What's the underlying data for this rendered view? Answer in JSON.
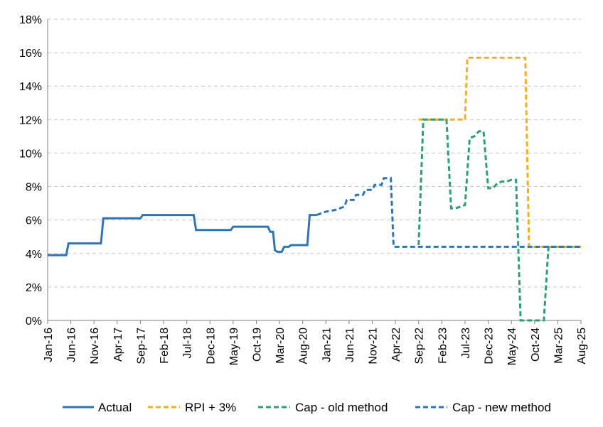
{
  "chart_data": {
    "type": "line",
    "title": "",
    "xlabel": "",
    "ylabel": "",
    "ylim": [
      0,
      18
    ],
    "y_ticks": [
      "0%",
      "2%",
      "4%",
      "6%",
      "8%",
      "10%",
      "12%",
      "14%",
      "16%",
      "18%"
    ],
    "x_ticks": [
      "Jan-16",
      "Jun-16",
      "Nov-16",
      "Apr-17",
      "Sep-17",
      "Feb-18",
      "Jul-18",
      "Dec-18",
      "May-19",
      "Oct-19",
      "Mar-20",
      "Aug-20",
      "Jan-21",
      "Jun-21",
      "Nov-21",
      "Apr-22",
      "Sep-22",
      "Feb-23",
      "Jul-23",
      "Dec-23",
      "May-24",
      "Oct-24",
      "Mar-25",
      "Aug-25"
    ],
    "x_tick_index": [
      0,
      5,
      10,
      15,
      20,
      25,
      30,
      35,
      40,
      45,
      50,
      55,
      60,
      65,
      70,
      75,
      80,
      85,
      90,
      95,
      100,
      105,
      110,
      115
    ],
    "x_range_months": [
      0,
      115
    ],
    "grid": "horizontal dashed",
    "legend_position": "bottom",
    "series": [
      {
        "name": "Actual",
        "color": "#2e75b6",
        "dash": "solid",
        "points": [
          [
            0,
            3.9
          ],
          [
            4,
            3.9
          ],
          [
            4.5,
            4.6
          ],
          [
            11.5,
            4.6
          ],
          [
            12,
            6.1
          ],
          [
            20,
            6.1
          ],
          [
            20.5,
            6.3
          ],
          [
            31.5,
            6.3
          ],
          [
            32,
            5.4
          ],
          [
            39.5,
            5.4
          ],
          [
            40,
            5.6
          ],
          [
            47.5,
            5.6
          ],
          [
            48,
            5.3
          ],
          [
            48.6,
            5.3
          ],
          [
            49,
            4.2
          ],
          [
            49.5,
            4.1
          ],
          [
            50.5,
            4.1
          ],
          [
            51,
            4.4
          ],
          [
            52,
            4.4
          ],
          [
            52.5,
            4.5
          ],
          [
            56,
            4.5
          ],
          [
            56.5,
            6.3
          ],
          [
            58,
            6.3
          ]
        ]
      },
      {
        "name": "RPI + 3%",
        "color": "#f2b01e",
        "dash": "dashed",
        "points": [
          [
            80,
            12.0
          ],
          [
            90,
            12.0
          ],
          [
            90.5,
            15.7
          ],
          [
            103,
            15.7
          ],
          [
            103.8,
            4.4
          ],
          [
            115,
            4.4
          ]
        ]
      },
      {
        "name": "Cap - old method",
        "color": "#2e9e7a",
        "dash": "dashed",
        "points": [
          [
            80,
            4.5
          ],
          [
            81,
            12.0
          ],
          [
            86,
            12.0
          ],
          [
            87,
            6.7
          ],
          [
            88,
            6.7
          ],
          [
            89,
            6.8
          ],
          [
            90,
            6.9
          ],
          [
            91,
            10.9
          ],
          [
            92,
            11.0
          ],
          [
            93,
            11.3
          ],
          [
            94,
            11.3
          ],
          [
            95,
            7.9
          ],
          [
            96,
            7.9
          ],
          [
            97,
            8.2
          ],
          [
            98,
            8.3
          ],
          [
            99,
            8.3
          ],
          [
            100,
            8.4
          ],
          [
            101,
            8.4
          ],
          [
            102,
            0.0
          ],
          [
            103,
            0.0
          ],
          [
            104,
            0.0
          ],
          [
            105,
            0.0
          ],
          [
            106,
            0.0
          ],
          [
            107,
            0.0
          ],
          [
            108,
            4.4
          ],
          [
            115,
            4.4
          ]
        ]
      },
      {
        "name": "Cap - new method",
        "color": "#2e75b6",
        "dash": "dashed",
        "points": [
          [
            58,
            6.3
          ],
          [
            60,
            6.5
          ],
          [
            62,
            6.6
          ],
          [
            63,
            6.7
          ],
          [
            64,
            6.8
          ],
          [
            64.5,
            7.2
          ],
          [
            66,
            7.2
          ],
          [
            66.5,
            7.5
          ],
          [
            68,
            7.5
          ],
          [
            68.5,
            7.8
          ],
          [
            70,
            7.8
          ],
          [
            70.5,
            8.1
          ],
          [
            72,
            8.1
          ],
          [
            72.5,
            8.5
          ],
          [
            74,
            8.5
          ],
          [
            74.6,
            4.4
          ],
          [
            115,
            4.4
          ]
        ]
      }
    ]
  }
}
